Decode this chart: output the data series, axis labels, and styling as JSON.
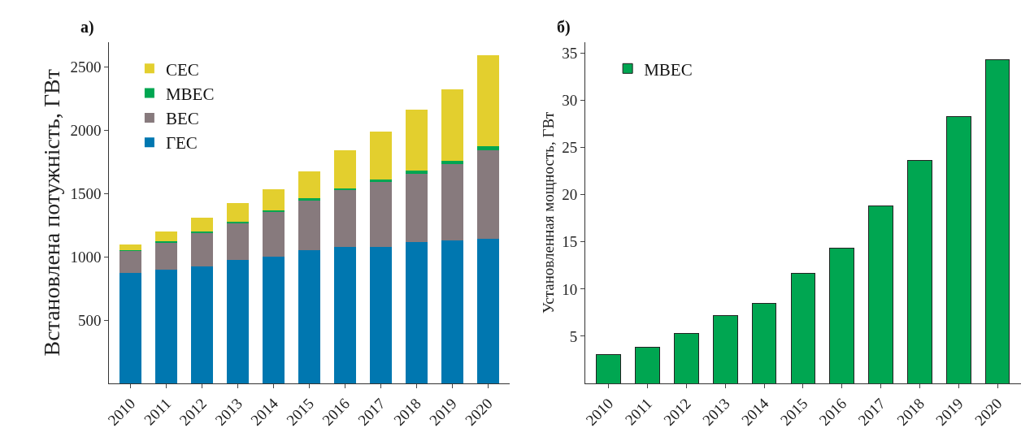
{
  "chart_data": [
    {
      "type": "bar",
      "title": "а)",
      "ylabel": "Встановлена потужність, ГВт",
      "stacked": true,
      "legend": "top left",
      "categories": [
        "2010",
        "2011",
        "2012",
        "2013",
        "2014",
        "2015",
        "2016",
        "2017",
        "2018",
        "2019",
        "2020"
      ],
      "ylim": [
        0,
        2700
      ],
      "yticks": [
        500,
        1000,
        1500,
        2000,
        2500
      ],
      "series": [
        {
          "name": "ГЕС",
          "color": "#0077b0",
          "values": [
            875,
            902,
            927,
            978,
            1004,
            1053,
            1080,
            1080,
            1119,
            1131,
            1145
          ]
        },
        {
          "name": "ВЕС",
          "color": "#877a7d",
          "values": [
            178,
            217,
            269,
            296,
            358,
            401,
            447,
            510,
            540,
            601,
            698
          ]
        },
        {
          "name": "МВЕС",
          "color": "#00a651",
          "values": [
            3,
            4,
            5,
            7,
            9,
            12,
            14,
            19,
            24,
            28,
            34
          ]
        },
        {
          "name": "СЕС",
          "color": "#e3cf2e",
          "values": [
            41,
            75,
            107,
            142,
            166,
            210,
            302,
            385,
            479,
            567,
            716
          ]
        }
      ]
    },
    {
      "type": "bar",
      "title": "б)",
      "ylabel": "Установленная мощность, ГВт",
      "legend": "top left",
      "categories": [
        "2010",
        "2011",
        "2012",
        "2013",
        "2014",
        "2015",
        "2016",
        "2017",
        "2018",
        "2019",
        "2020"
      ],
      "ylim": [
        0,
        36.2
      ],
      "yticks": [
        5,
        10,
        15,
        20,
        25,
        30,
        35
      ],
      "series": [
        {
          "name": "МВЕС",
          "color": "#00a651",
          "values": [
            3.1,
            3.8,
            5.3,
            7.2,
            8.5,
            11.7,
            14.3,
            18.8,
            23.6,
            28.3,
            34.3
          ]
        }
      ]
    }
  ]
}
